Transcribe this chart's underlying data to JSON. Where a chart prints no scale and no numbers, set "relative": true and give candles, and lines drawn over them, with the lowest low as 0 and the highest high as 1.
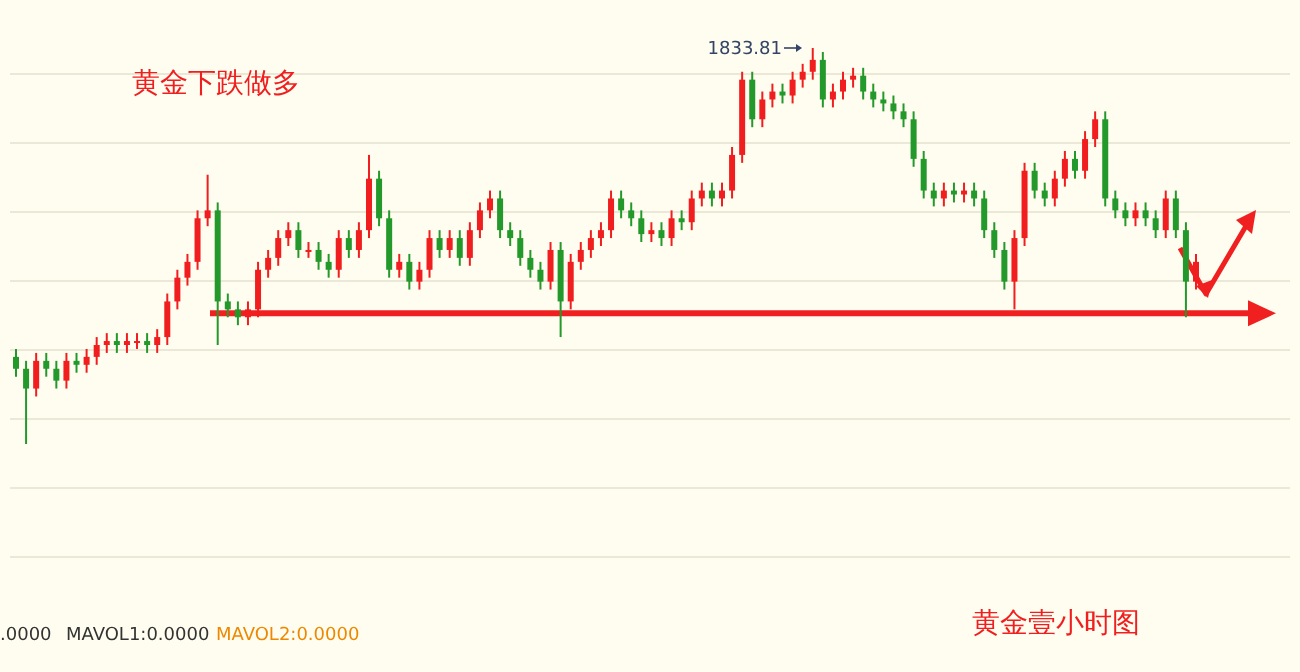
{
  "chart_data": {
    "type": "candlestick",
    "relative": true,
    "grid": "y",
    "categories": [
      null,
      null,
      null,
      null,
      null,
      null,
      null,
      null,
      null,
      null,
      null,
      null,
      null,
      null,
      null,
      null,
      null,
      null,
      null,
      null,
      null,
      null,
      null,
      null,
      null,
      null,
      null,
      null,
      null,
      null,
      null,
      null,
      null,
      null,
      null,
      null,
      null,
      null,
      null,
      null,
      null,
      null,
      null,
      null,
      null,
      null,
      null,
      null,
      null,
      null,
      null,
      null,
      null,
      null,
      null,
      null,
      null,
      null,
      null,
      null,
      null,
      null,
      null,
      null,
      null,
      null,
      null,
      null,
      null,
      null,
      null,
      null,
      null,
      null,
      null,
      null,
      null,
      null,
      null,
      null,
      null,
      null,
      null,
      null,
      null,
      null,
      null,
      null,
      null,
      null,
      null,
      null,
      null,
      null,
      null,
      null,
      null,
      null,
      null,
      null,
      null,
      null,
      null,
      null,
      null,
      null,
      null,
      null,
      null,
      null,
      null,
      null,
      null,
      null,
      null,
      null,
      null,
      null
    ],
    "ohlc": [
      [
        0.22,
        0.24,
        0.17,
        0.19
      ],
      [
        0.19,
        0.21,
        0.0,
        0.14
      ],
      [
        0.14,
        0.23,
        0.12,
        0.21
      ],
      [
        0.21,
        0.23,
        0.17,
        0.19
      ],
      [
        0.19,
        0.21,
        0.14,
        0.16
      ],
      [
        0.16,
        0.23,
        0.14,
        0.21
      ],
      [
        0.21,
        0.23,
        0.18,
        0.2
      ],
      [
        0.2,
        0.24,
        0.18,
        0.22
      ],
      [
        0.22,
        0.27,
        0.2,
        0.25
      ],
      [
        0.25,
        0.28,
        0.23,
        0.26
      ],
      [
        0.26,
        0.28,
        0.23,
        0.25
      ],
      [
        0.25,
        0.28,
        0.23,
        0.26
      ],
      [
        0.26,
        0.28,
        0.24,
        0.26
      ],
      [
        0.26,
        0.28,
        0.23,
        0.25
      ],
      [
        0.25,
        0.29,
        0.23,
        0.27
      ],
      [
        0.27,
        0.38,
        0.25,
        0.36
      ],
      [
        0.36,
        0.44,
        0.34,
        0.42
      ],
      [
        0.42,
        0.48,
        0.4,
        0.46
      ],
      [
        0.46,
        0.59,
        0.44,
        0.57
      ],
      [
        0.57,
        0.68,
        0.55,
        0.59
      ],
      [
        0.59,
        0.61,
        0.25,
        0.36
      ],
      [
        0.36,
        0.38,
        0.32,
        0.34
      ],
      [
        0.34,
        0.36,
        0.3,
        0.32
      ],
      [
        0.32,
        0.36,
        0.3,
        0.34
      ],
      [
        0.34,
        0.46,
        0.32,
        0.44
      ],
      [
        0.44,
        0.49,
        0.42,
        0.47
      ],
      [
        0.47,
        0.54,
        0.45,
        0.52
      ],
      [
        0.52,
        0.56,
        0.5,
        0.54
      ],
      [
        0.54,
        0.56,
        0.47,
        0.49
      ],
      [
        0.49,
        0.51,
        0.47,
        0.49
      ],
      [
        0.49,
        0.51,
        0.44,
        0.46
      ],
      [
        0.46,
        0.48,
        0.42,
        0.44
      ],
      [
        0.44,
        0.54,
        0.42,
        0.52
      ],
      [
        0.52,
        0.54,
        0.47,
        0.49
      ],
      [
        0.49,
        0.56,
        0.47,
        0.54
      ],
      [
        0.54,
        0.73,
        0.52,
        0.67
      ],
      [
        0.67,
        0.69,
        0.55,
        0.57
      ],
      [
        0.57,
        0.59,
        0.42,
        0.44
      ],
      [
        0.44,
        0.48,
        0.42,
        0.46
      ],
      [
        0.46,
        0.48,
        0.39,
        0.41
      ],
      [
        0.41,
        0.46,
        0.39,
        0.44
      ],
      [
        0.44,
        0.54,
        0.42,
        0.52
      ],
      [
        0.52,
        0.54,
        0.47,
        0.49
      ],
      [
        0.49,
        0.54,
        0.47,
        0.52
      ],
      [
        0.52,
        0.54,
        0.45,
        0.47
      ],
      [
        0.47,
        0.56,
        0.45,
        0.54
      ],
      [
        0.54,
        0.61,
        0.52,
        0.59
      ],
      [
        0.59,
        0.64,
        0.57,
        0.62
      ],
      [
        0.62,
        0.64,
        0.52,
        0.54
      ],
      [
        0.54,
        0.56,
        0.5,
        0.52
      ],
      [
        0.52,
        0.54,
        0.45,
        0.47
      ],
      [
        0.47,
        0.49,
        0.42,
        0.44
      ],
      [
        0.44,
        0.46,
        0.39,
        0.41
      ],
      [
        0.41,
        0.51,
        0.39,
        0.49
      ],
      [
        0.49,
        0.51,
        0.27,
        0.36
      ],
      [
        0.36,
        0.48,
        0.34,
        0.46
      ],
      [
        0.46,
        0.51,
        0.44,
        0.49
      ],
      [
        0.49,
        0.54,
        0.47,
        0.52
      ],
      [
        0.52,
        0.56,
        0.5,
        0.54
      ],
      [
        0.54,
        0.64,
        0.52,
        0.62
      ],
      [
        0.62,
        0.64,
        0.57,
        0.59
      ],
      [
        0.59,
        0.61,
        0.55,
        0.57
      ],
      [
        0.57,
        0.59,
        0.51,
        0.53
      ],
      [
        0.53,
        0.56,
        0.51,
        0.54
      ],
      [
        0.54,
        0.56,
        0.5,
        0.52
      ],
      [
        0.52,
        0.59,
        0.5,
        0.57
      ],
      [
        0.57,
        0.59,
        0.54,
        0.56
      ],
      [
        0.56,
        0.64,
        0.54,
        0.62
      ],
      [
        0.62,
        0.66,
        0.6,
        0.64
      ],
      [
        0.64,
        0.66,
        0.6,
        0.62
      ],
      [
        0.62,
        0.66,
        0.6,
        0.64
      ],
      [
        0.64,
        0.75,
        0.62,
        0.73
      ],
      [
        0.73,
        0.94,
        0.71,
        0.92
      ],
      [
        0.92,
        0.94,
        0.8,
        0.82
      ],
      [
        0.82,
        0.89,
        0.8,
        0.87
      ],
      [
        0.87,
        0.91,
        0.85,
        0.89
      ],
      [
        0.89,
        0.91,
        0.86,
        0.88
      ],
      [
        0.88,
        0.94,
        0.86,
        0.92
      ],
      [
        0.92,
        0.96,
        0.9,
        0.94
      ],
      [
        0.94,
        1.0,
        0.92,
        0.97
      ],
      [
        0.97,
        0.99,
        0.85,
        0.87
      ],
      [
        0.87,
        0.91,
        0.85,
        0.89
      ],
      [
        0.89,
        0.94,
        0.87,
        0.92
      ],
      [
        0.92,
        0.95,
        0.9,
        0.93
      ],
      [
        0.93,
        0.95,
        0.87,
        0.89
      ],
      [
        0.89,
        0.91,
        0.85,
        0.87
      ],
      [
        0.87,
        0.89,
        0.84,
        0.86
      ],
      [
        0.86,
        0.88,
        0.82,
        0.84
      ],
      [
        0.84,
        0.86,
        0.8,
        0.82
      ],
      [
        0.82,
        0.84,
        0.7,
        0.72
      ],
      [
        0.72,
        0.74,
        0.62,
        0.64
      ],
      [
        0.64,
        0.66,
        0.6,
        0.62
      ],
      [
        0.62,
        0.66,
        0.6,
        0.64
      ],
      [
        0.64,
        0.66,
        0.61,
        0.63
      ],
      [
        0.63,
        0.66,
        0.61,
        0.64
      ],
      [
        0.64,
        0.66,
        0.6,
        0.62
      ],
      [
        0.62,
        0.64,
        0.52,
        0.54
      ],
      [
        0.54,
        0.56,
        0.47,
        0.49
      ],
      [
        0.49,
        0.51,
        0.39,
        0.41
      ],
      [
        0.41,
        0.54,
        0.34,
        0.52
      ],
      [
        0.52,
        0.71,
        0.5,
        0.69
      ],
      [
        0.69,
        0.71,
        0.62,
        0.64
      ],
      [
        0.64,
        0.66,
        0.6,
        0.62
      ],
      [
        0.62,
        0.69,
        0.6,
        0.67
      ],
      [
        0.67,
        0.74,
        0.65,
        0.72
      ],
      [
        0.72,
        0.74,
        0.67,
        0.69
      ],
      [
        0.69,
        0.79,
        0.67,
        0.77
      ],
      [
        0.77,
        0.84,
        0.75,
        0.82
      ],
      [
        0.82,
        0.84,
        0.6,
        0.62
      ],
      [
        0.62,
        0.64,
        0.57,
        0.59
      ],
      [
        0.59,
        0.61,
        0.55,
        0.57
      ],
      [
        0.57,
        0.61,
        0.55,
        0.59
      ],
      [
        0.59,
        0.61,
        0.55,
        0.57
      ],
      [
        0.57,
        0.59,
        0.52,
        0.54
      ],
      [
        0.54,
        0.64,
        0.52,
        0.62
      ],
      [
        0.62,
        0.64,
        0.52,
        0.54
      ],
      [
        0.54,
        0.56,
        0.32,
        0.41
      ],
      [
        0.41,
        0.48,
        0.39,
        0.46
      ]
    ],
    "ref_lines": [
      {
        "axis": "y",
        "value": 0.33,
        "color": "#f02020"
      }
    ],
    "annotations": [
      "1833.81",
      "黄金下跌做多",
      "黄金壹小时图",
      ".0000",
      "MAVOL1:0.0000",
      "MAVOL2:0.0000"
    ]
  }
}
